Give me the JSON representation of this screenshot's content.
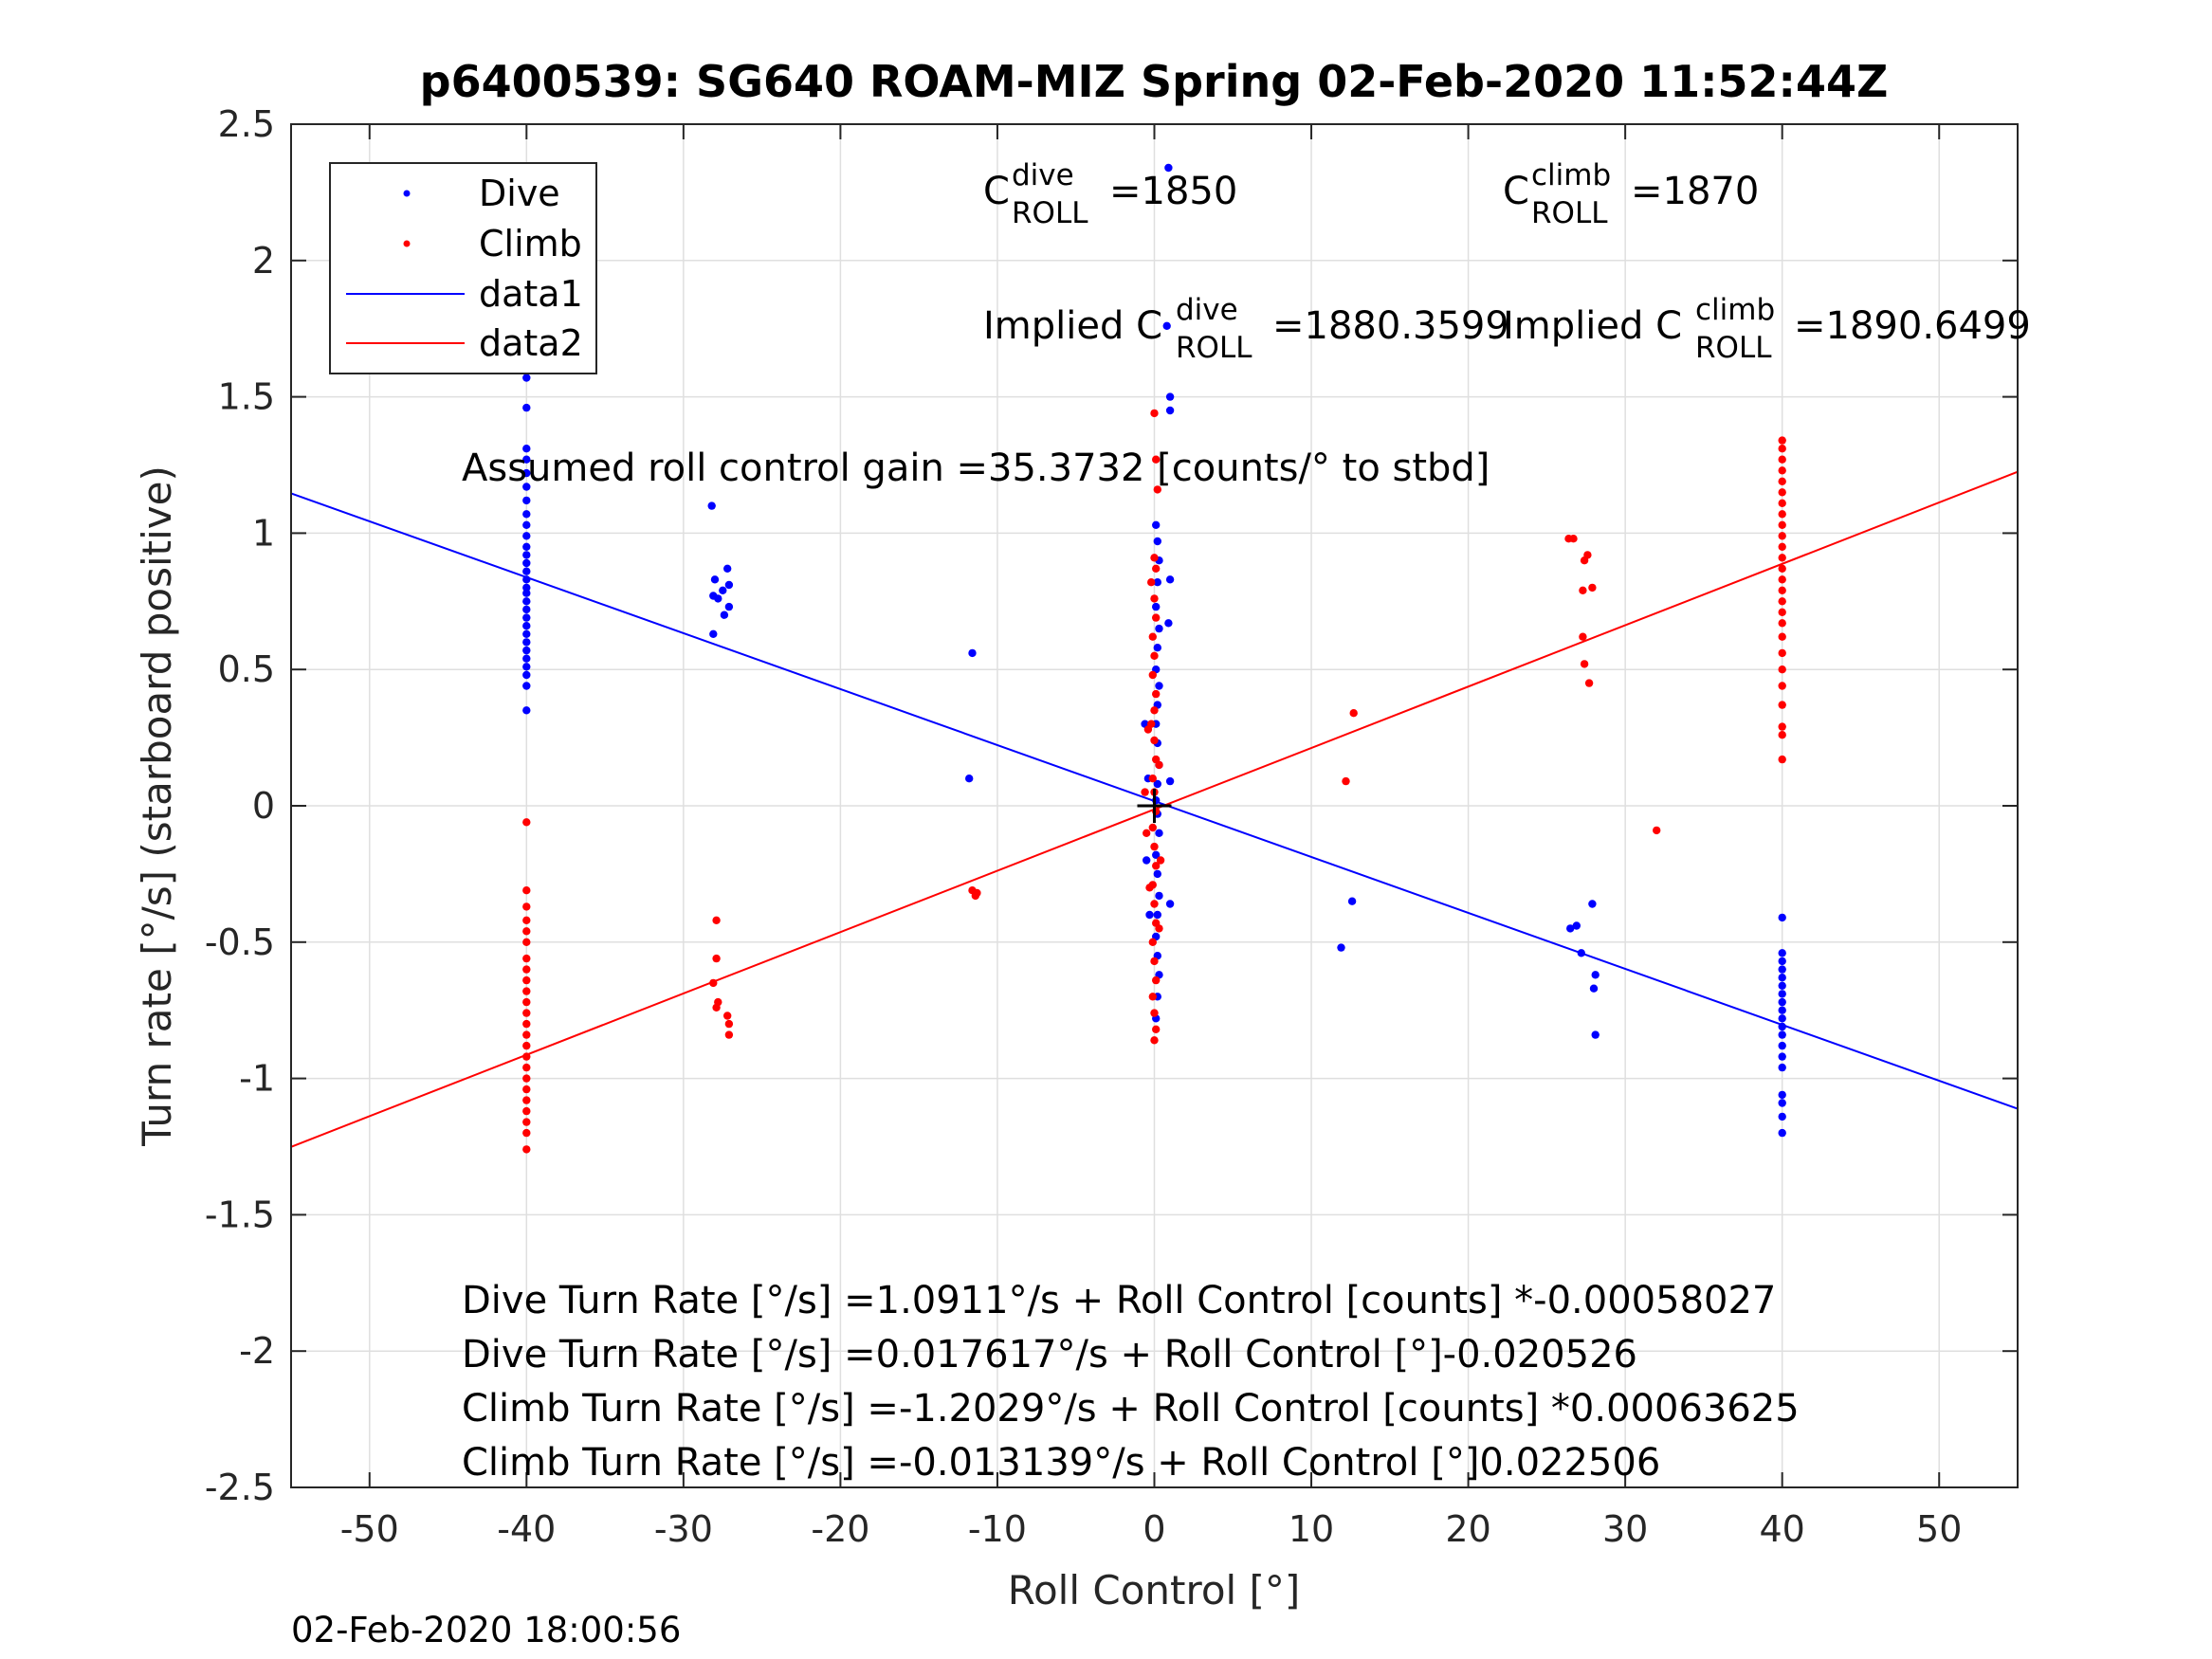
{
  "chart_data": {
    "type": "scatter",
    "title": "p6400539: SG640 ROAM-MIZ Spring 02-Feb-2020 11:52:44Z",
    "xlabel": "Roll Control [°]",
    "ylabel": "Turn rate [°/s] (starboard positive)",
    "xlim": [
      -55,
      55
    ],
    "ylim": [
      -2.5,
      2.5
    ],
    "xticks": [
      -50,
      -40,
      -30,
      -20,
      -10,
      0,
      10,
      20,
      30,
      40,
      50
    ],
    "yticks": [
      -2.5,
      -2,
      -1.5,
      -1,
      -0.5,
      0,
      0.5,
      1,
      1.5,
      2,
      2.5
    ],
    "xtick_labels": [
      "-50",
      "-40",
      "-30",
      "-20",
      "-10",
      "0",
      "10",
      "20",
      "30",
      "40",
      "50"
    ],
    "ytick_labels": [
      "-2.5",
      "-2",
      "-1.5",
      "-1",
      "-0.5",
      "0",
      "0.5",
      "1",
      "1.5",
      "2",
      "2.5"
    ],
    "grid": true,
    "legend_placement": "top-left",
    "legend": [
      "Dive",
      "Climb",
      "data1",
      "data2"
    ],
    "colors": {
      "dive": "#0000ff",
      "climb": "#ff0000",
      "axes": "#262626",
      "grid": "#dfdfdf"
    },
    "series": [
      {
        "name": "Dive",
        "kind": "points",
        "color": "#0000ff",
        "points": [
          [
            -40,
            1.69
          ],
          [
            -40,
            1.64
          ],
          [
            -40,
            1.57
          ],
          [
            -40,
            1.46
          ],
          [
            -40,
            1.31
          ],
          [
            -40,
            1.27
          ],
          [
            -40,
            1.22
          ],
          [
            -40,
            1.17
          ],
          [
            -40,
            1.12
          ],
          [
            -40,
            1.07
          ],
          [
            -40,
            1.03
          ],
          [
            -40,
            0.99
          ],
          [
            -40,
            0.95
          ],
          [
            -40,
            0.92
          ],
          [
            -40,
            0.89
          ],
          [
            -40,
            0.86
          ],
          [
            -40,
            0.83
          ],
          [
            -40,
            0.8
          ],
          [
            -40,
            0.78
          ],
          [
            -40,
            0.75
          ],
          [
            -40,
            0.72
          ],
          [
            -40,
            0.69
          ],
          [
            -40,
            0.66
          ],
          [
            -40,
            0.63
          ],
          [
            -40,
            0.6
          ],
          [
            -40,
            0.57
          ],
          [
            -40,
            0.54
          ],
          [
            -40,
            0.51
          ],
          [
            -40,
            0.48
          ],
          [
            -40,
            0.44
          ],
          [
            -40,
            0.35
          ],
          [
            -28.2,
            1.1
          ],
          [
            -28,
            0.83
          ],
          [
            -28.1,
            0.77
          ],
          [
            -27.8,
            0.76
          ],
          [
            -27.5,
            0.79
          ],
          [
            -27.2,
            0.87
          ],
          [
            -27.1,
            0.81
          ],
          [
            -27.1,
            0.73
          ],
          [
            -27.4,
            0.7
          ],
          [
            -28.1,
            0.63
          ],
          [
            -11.6,
            0.56
          ],
          [
            -11.8,
            0.1
          ],
          [
            0.9,
            2.34
          ],
          [
            0.8,
            1.76
          ],
          [
            1,
            1.5
          ],
          [
            1,
            1.45
          ],
          [
            0.1,
            1.03
          ],
          [
            1,
            0.83
          ],
          [
            0.9,
            0.67
          ],
          [
            1,
            0.09
          ],
          [
            1,
            -0.36
          ],
          [
            0.2,
            0.97
          ],
          [
            0.3,
            0.9
          ],
          [
            0.2,
            0.82
          ],
          [
            0.1,
            0.73
          ],
          [
            0.3,
            0.65
          ],
          [
            0.2,
            0.58
          ],
          [
            0.1,
            0.5
          ],
          [
            0.3,
            0.44
          ],
          [
            0.2,
            0.37
          ],
          [
            0.1,
            0.3
          ],
          [
            0.2,
            0.23
          ],
          [
            0.3,
            0.15
          ],
          [
            0.2,
            0.08
          ],
          [
            0.1,
            0.02
          ],
          [
            0.2,
            -0.03
          ],
          [
            0.3,
            -0.1
          ],
          [
            0.1,
            -0.18
          ],
          [
            0.2,
            -0.25
          ],
          [
            0.3,
            -0.33
          ],
          [
            0.2,
            -0.4
          ],
          [
            0.1,
            -0.48
          ],
          [
            0.2,
            -0.55
          ],
          [
            0.3,
            -0.62
          ],
          [
            0.2,
            -0.7
          ],
          [
            0.1,
            -0.78
          ],
          [
            -0.5,
            -0.2
          ],
          [
            -0.4,
            0.1
          ],
          [
            -0.3,
            -0.4
          ],
          [
            -0.6,
            0.3
          ],
          [
            12.6,
            -0.35
          ],
          [
            11.9,
            -0.52
          ],
          [
            26.9,
            -0.44
          ],
          [
            26.5,
            -0.45
          ],
          [
            27.2,
            -0.54
          ],
          [
            27.9,
            -0.36
          ],
          [
            28.1,
            -0.62
          ],
          [
            28,
            -0.67
          ],
          [
            28.1,
            -0.84
          ],
          [
            40,
            -0.41
          ],
          [
            40,
            -0.54
          ],
          [
            40,
            -0.57
          ],
          [
            40,
            -0.6
          ],
          [
            40,
            -0.63
          ],
          [
            40,
            -0.66
          ],
          [
            40,
            -0.69
          ],
          [
            40,
            -0.72
          ],
          [
            40,
            -0.75
          ],
          [
            40,
            -0.78
          ],
          [
            40,
            -0.81
          ],
          [
            40,
            -0.84
          ],
          [
            40,
            -0.88
          ],
          [
            40,
            -0.92
          ],
          [
            40,
            -0.96
          ],
          [
            40,
            -1.06
          ],
          [
            40,
            -1.09
          ],
          [
            40,
            -1.14
          ],
          [
            40,
            -1.2
          ]
        ]
      },
      {
        "name": "Climb",
        "kind": "points",
        "color": "#ff0000",
        "points": [
          [
            -40,
            -0.06
          ],
          [
            -40,
            -0.31
          ],
          [
            -40,
            -0.37
          ],
          [
            -40,
            -0.42
          ],
          [
            -40,
            -0.46
          ],
          [
            -40,
            -0.5
          ],
          [
            -40,
            -0.56
          ],
          [
            -40,
            -0.6
          ],
          [
            -40,
            -0.64
          ],
          [
            -40,
            -0.68
          ],
          [
            -40,
            -0.72
          ],
          [
            -40,
            -0.76
          ],
          [
            -40,
            -0.8
          ],
          [
            -40,
            -0.84
          ],
          [
            -40,
            -0.88
          ],
          [
            -40,
            -0.92
          ],
          [
            -40,
            -0.96
          ],
          [
            -40,
            -1
          ],
          [
            -40,
            -1.04
          ],
          [
            -40,
            -1.08
          ],
          [
            -40,
            -1.12
          ],
          [
            -40,
            -1.16
          ],
          [
            -40,
            -1.2
          ],
          [
            -40,
            -1.26
          ],
          [
            -27.9,
            -0.42
          ],
          [
            -27.9,
            -0.56
          ],
          [
            -28.1,
            -0.65
          ],
          [
            -27.8,
            -0.72
          ],
          [
            -27.9,
            -0.74
          ],
          [
            -27.2,
            -0.77
          ],
          [
            -27.1,
            -0.8
          ],
          [
            -27.1,
            -0.84
          ],
          [
            -11.6,
            -0.31
          ],
          [
            -11.3,
            -0.32
          ],
          [
            -11.4,
            -0.33
          ],
          [
            0,
            1.44
          ],
          [
            0.1,
            1.27
          ],
          [
            0.2,
            1.16
          ],
          [
            0,
            0.91
          ],
          [
            0.1,
            0.87
          ],
          [
            -0.2,
            0.82
          ],
          [
            0,
            0.76
          ],
          [
            0.1,
            0.69
          ],
          [
            -0.1,
            0.62
          ],
          [
            0,
            0.55
          ],
          [
            -0.1,
            0.48
          ],
          [
            0.1,
            0.41
          ],
          [
            0,
            0.35
          ],
          [
            -0.2,
            0.3
          ],
          [
            0,
            0.24
          ],
          [
            0.1,
            0.17
          ],
          [
            -0.1,
            0.1
          ],
          [
            0,
            0.05
          ],
          [
            0.1,
            -0.02
          ],
          [
            -0.1,
            -0.08
          ],
          [
            0,
            -0.15
          ],
          [
            0.1,
            -0.22
          ],
          [
            -0.1,
            -0.29
          ],
          [
            0,
            -0.36
          ],
          [
            0.1,
            -0.43
          ],
          [
            -0.1,
            -0.5
          ],
          [
            0,
            -0.57
          ],
          [
            0.1,
            -0.64
          ],
          [
            -0.1,
            -0.7
          ],
          [
            0,
            -0.76
          ],
          [
            0.1,
            -0.82
          ],
          [
            0,
            -0.86
          ],
          [
            -0.4,
            0.28
          ],
          [
            -0.5,
            -0.1
          ],
          [
            -0.3,
            -0.3
          ],
          [
            0.3,
            0.15
          ],
          [
            0.4,
            -0.2
          ],
          [
            0.3,
            -0.45
          ],
          [
            -0.6,
            0.05
          ],
          [
            12.7,
            0.34
          ],
          [
            12.2,
            0.09
          ],
          [
            32,
            -0.09
          ],
          [
            26.4,
            0.98
          ],
          [
            26.7,
            0.98
          ],
          [
            27.4,
            0.9
          ],
          [
            27.6,
            0.92
          ],
          [
            27.9,
            0.8
          ],
          [
            27.3,
            0.79
          ],
          [
            27.3,
            0.62
          ],
          [
            27.4,
            0.52
          ],
          [
            27.7,
            0.45
          ],
          [
            40,
            1.34
          ],
          [
            40,
            1.31
          ],
          [
            40,
            1.27
          ],
          [
            40,
            1.23
          ],
          [
            40,
            1.19
          ],
          [
            40,
            1.15
          ],
          [
            40,
            1.11
          ],
          [
            40,
            1.07
          ],
          [
            40,
            1.03
          ],
          [
            40,
            0.99
          ],
          [
            40,
            0.95
          ],
          [
            40,
            0.91
          ],
          [
            40,
            0.87
          ],
          [
            40,
            0.83
          ],
          [
            40,
            0.79
          ],
          [
            40,
            0.75
          ],
          [
            40,
            0.71
          ],
          [
            40,
            0.67
          ],
          [
            40,
            0.62
          ],
          [
            40,
            0.56
          ],
          [
            40,
            0.5
          ],
          [
            40,
            0.44
          ],
          [
            40,
            0.37
          ],
          [
            40,
            0.29
          ],
          [
            40,
            0.26
          ],
          [
            40,
            0.17
          ]
        ]
      },
      {
        "name": "data1",
        "kind": "line",
        "color": "#0000ff",
        "x": [
          -55,
          55
        ],
        "y": [
          1.146,
          -1.111
        ]
      },
      {
        "name": "data2",
        "kind": "line",
        "color": "#ff0000",
        "x": [
          -55,
          55
        ],
        "y": [
          -1.251,
          1.225
        ]
      }
    ],
    "origin_marker": {
      "x": 0,
      "y": 0,
      "symbol": "+",
      "color": "#000000"
    },
    "annotations": {
      "c_dive": {
        "base": "C",
        "sup": "dive",
        "sub": "ROLL",
        "value": "=1850"
      },
      "c_climb": {
        "base": "C",
        "sup": "climb",
        "sub": "ROLL",
        "value": "=1870"
      },
      "implied_dive": {
        "prefix": "Implied C",
        "sup": "dive",
        "sub": "ROLL",
        "value": "=1880.3599"
      },
      "implied_climb": {
        "prefix": "Implied C",
        "sup": "climb",
        "sub": "ROLL",
        "value": "=1890.6499"
      },
      "gain": "Assumed roll control gain =35.3732 [counts/° to stbd]",
      "fit_lines": [
        "Dive Turn Rate [°/s] =1.0911°/s + Roll Control [counts] *-0.00058027",
        "Dive Turn Rate [°/s] =0.017617°/s + Roll Control [°]-0.020526",
        "Climb Turn Rate [°/s] =-1.2029°/s + Roll Control [counts] *0.00063625",
        "Climb Turn Rate [°/s] =-0.013139°/s + Roll Control [°]0.022506"
      ]
    },
    "timestamp": "02-Feb-2020 18:00:56"
  }
}
